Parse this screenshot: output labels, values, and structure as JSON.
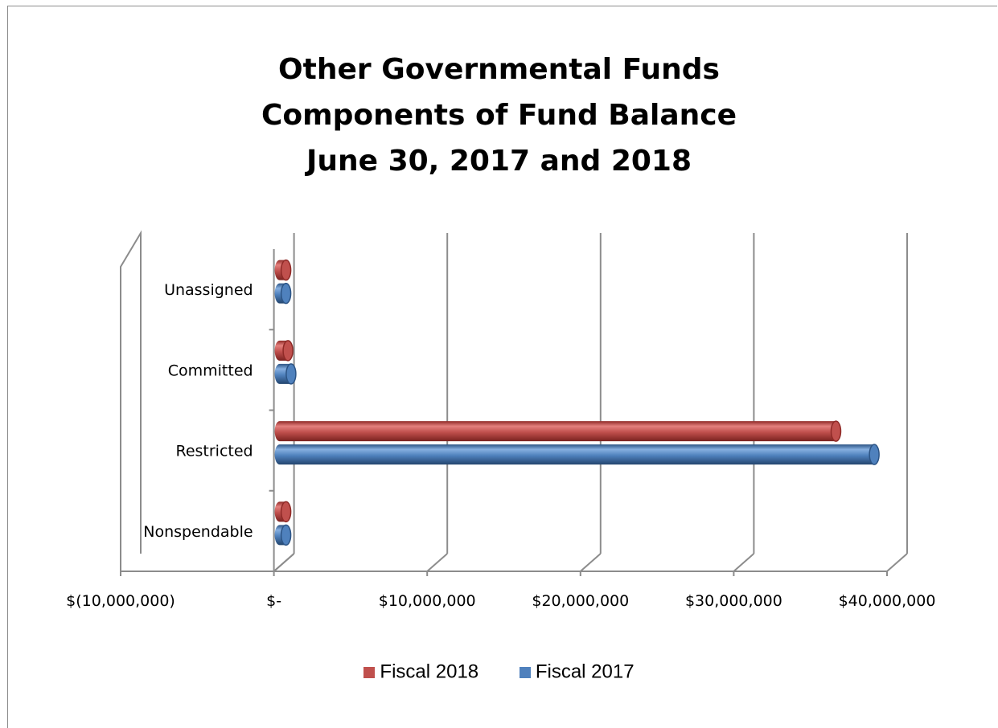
{
  "chart_data": {
    "type": "bar",
    "orientation": "horizontal",
    "title_lines": [
      "Other Governmental Funds",
      "Components of Fund Balance",
      "June 30, 2017 and 2018"
    ],
    "categories": [
      "Nonspendable",
      "Restricted",
      "Committed",
      "Unassigned"
    ],
    "series": [
      {
        "name": "Fiscal 2018",
        "color": "#c0504d",
        "values": [
          300000,
          36300000,
          550000,
          350000
        ]
      },
      {
        "name": "Fiscal 2017",
        "color": "#4f81bd",
        "values": [
          250000,
          38800000,
          750000,
          300000
        ]
      }
    ],
    "xlim": [
      -10000000,
      40000000
    ],
    "xticks": [
      -10000000,
      0,
      10000000,
      20000000,
      30000000,
      40000000
    ],
    "xtick_labels": [
      "$(10,000,000)",
      "$-",
      "$10,000,000",
      "$20,000,000",
      "$30,000,000",
      "$40,000,000"
    ],
    "grid": true,
    "legend_position": "bottom",
    "style": "3d-cylinder"
  }
}
